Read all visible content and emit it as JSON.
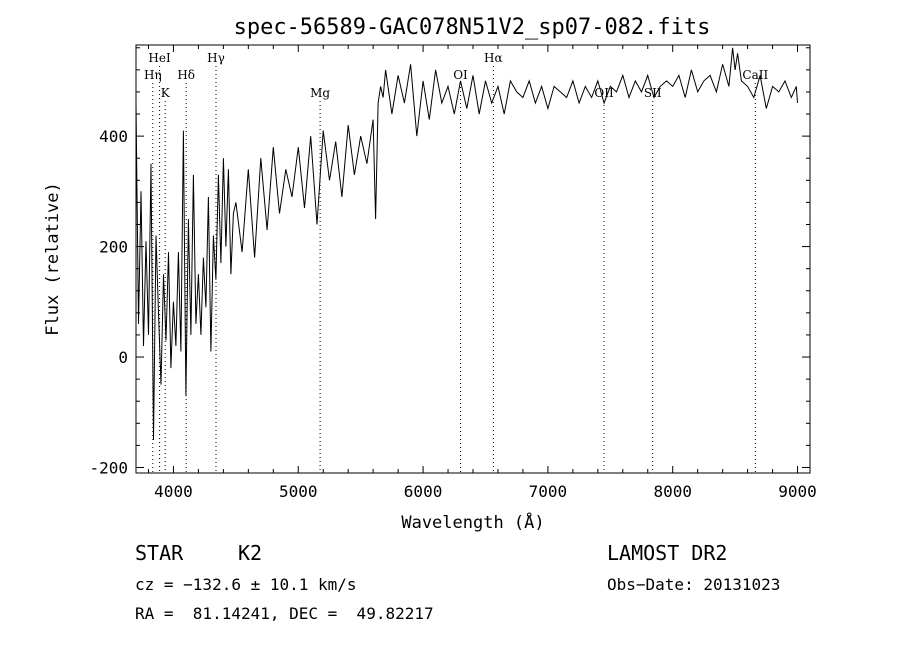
{
  "chart_data": {
    "type": "line",
    "title": "spec-56589-GAC078N51V2_sp07-082.fits",
    "xlabel": "Wavelength (Å)",
    "ylabel": "Flux (relative)",
    "xlim": [
      3700,
      9100
    ],
    "ylim": [
      -210,
      565
    ],
    "x_ticks": [
      4000,
      5000,
      6000,
      7000,
      8000,
      9000
    ],
    "y_ticks": [
      -200,
      0,
      200,
      400
    ],
    "grid": false,
    "line_color": "#000000",
    "series": [
      {
        "x": [
          3700,
          3720,
          3740,
          3760,
          3780,
          3800,
          3820,
          3840,
          3860,
          3880,
          3900,
          3920,
          3940,
          3960,
          3980,
          4000,
          4020,
          4040,
          4060,
          4080,
          4100,
          4120,
          4140,
          4160,
          4180,
          4200,
          4220,
          4240,
          4260,
          4280,
          4300,
          4320,
          4340,
          4360,
          4380,
          4400,
          4420,
          4440,
          4460,
          4480,
          4500,
          4550,
          4600,
          4650,
          4700,
          4750,
          4800,
          4850,
          4900,
          4950,
          5000,
          5050,
          5100,
          5150,
          5200,
          5250,
          5300,
          5350,
          5400,
          5450,
          5500,
          5550,
          5600,
          5620,
          5640,
          5660,
          5680,
          5700,
          5750,
          5800,
          5850,
          5900,
          5950,
          6000,
          6050,
          6100,
          6150,
          6200,
          6250,
          6300,
          6350,
          6400,
          6450,
          6500,
          6550,
          6600,
          6650,
          6700,
          6750,
          6800,
          6850,
          6900,
          6950,
          7000,
          7050,
          7100,
          7150,
          7200,
          7250,
          7300,
          7350,
          7400,
          7450,
          7500,
          7550,
          7600,
          7650,
          7700,
          7750,
          7800,
          7850,
          7900,
          7950,
          8000,
          8050,
          8100,
          8150,
          8200,
          8250,
          8300,
          8350,
          8400,
          8450,
          8480,
          8500,
          8520,
          8550,
          8600,
          8650,
          8700,
          8750,
          8800,
          8850,
          8900,
          8950,
          8990,
          9000
        ],
        "y": [
          460,
          60,
          300,
          20,
          210,
          40,
          350,
          -150,
          220,
          80,
          -50,
          150,
          30,
          190,
          -20,
          100,
          20,
          190,
          10,
          410,
          -70,
          250,
          40,
          330,
          60,
          150,
          40,
          180,
          90,
          290,
          10,
          220,
          140,
          330,
          170,
          360,
          200,
          340,
          150,
          260,
          280,
          190,
          340,
          180,
          360,
          230,
          380,
          260,
          340,
          290,
          380,
          270,
          400,
          240,
          410,
          320,
          390,
          290,
          420,
          330,
          400,
          350,
          430,
          250,
          460,
          490,
          470,
          520,
          440,
          510,
          460,
          530,
          400,
          500,
          430,
          520,
          460,
          490,
          440,
          500,
          450,
          510,
          440,
          500,
          460,
          490,
          440,
          500,
          480,
          470,
          500,
          460,
          490,
          450,
          490,
          480,
          470,
          500,
          460,
          490,
          470,
          500,
          460,
          490,
          480,
          510,
          470,
          500,
          480,
          510,
          470,
          490,
          500,
          490,
          510,
          470,
          520,
          480,
          500,
          510,
          480,
          530,
          490,
          560,
          520,
          550,
          500,
          490,
          470,
          510,
          450,
          490,
          480,
          500,
          470,
          490,
          460
        ]
      }
    ],
    "line_annotations": [
      {
        "x": 3835,
        "label": "Hη",
        "row": 2
      },
      {
        "x": 3889,
        "label": "HeI",
        "row": 1
      },
      {
        "x": 3934,
        "label": "K",
        "row": 3
      },
      {
        "x": 4102,
        "label": "Hδ",
        "row": 2
      },
      {
        "x": 4341,
        "label": "Hγ",
        "row": 1
      },
      {
        "x": 5175,
        "label": "Mg",
        "row": 3
      },
      {
        "x": 6300,
        "label": "OI",
        "row": 2
      },
      {
        "x": 6563,
        "label": "Hα",
        "row": 1
      },
      {
        "x": 7450,
        "label": "OII",
        "row": 3
      },
      {
        "x": 7840,
        "label": "SII",
        "row": 3
      },
      {
        "x": 8662,
        "label": "CaII",
        "row": 2
      }
    ]
  },
  "info": {
    "object_class": "STAR",
    "subclass": "K2",
    "survey": "LAMOST DR2",
    "cz": "cz = −132.6 ± 10.1 km/s",
    "obs_date": "Obs−Date: 20131023",
    "coords": "RA =  81.14241, DEC =  49.82217"
  }
}
